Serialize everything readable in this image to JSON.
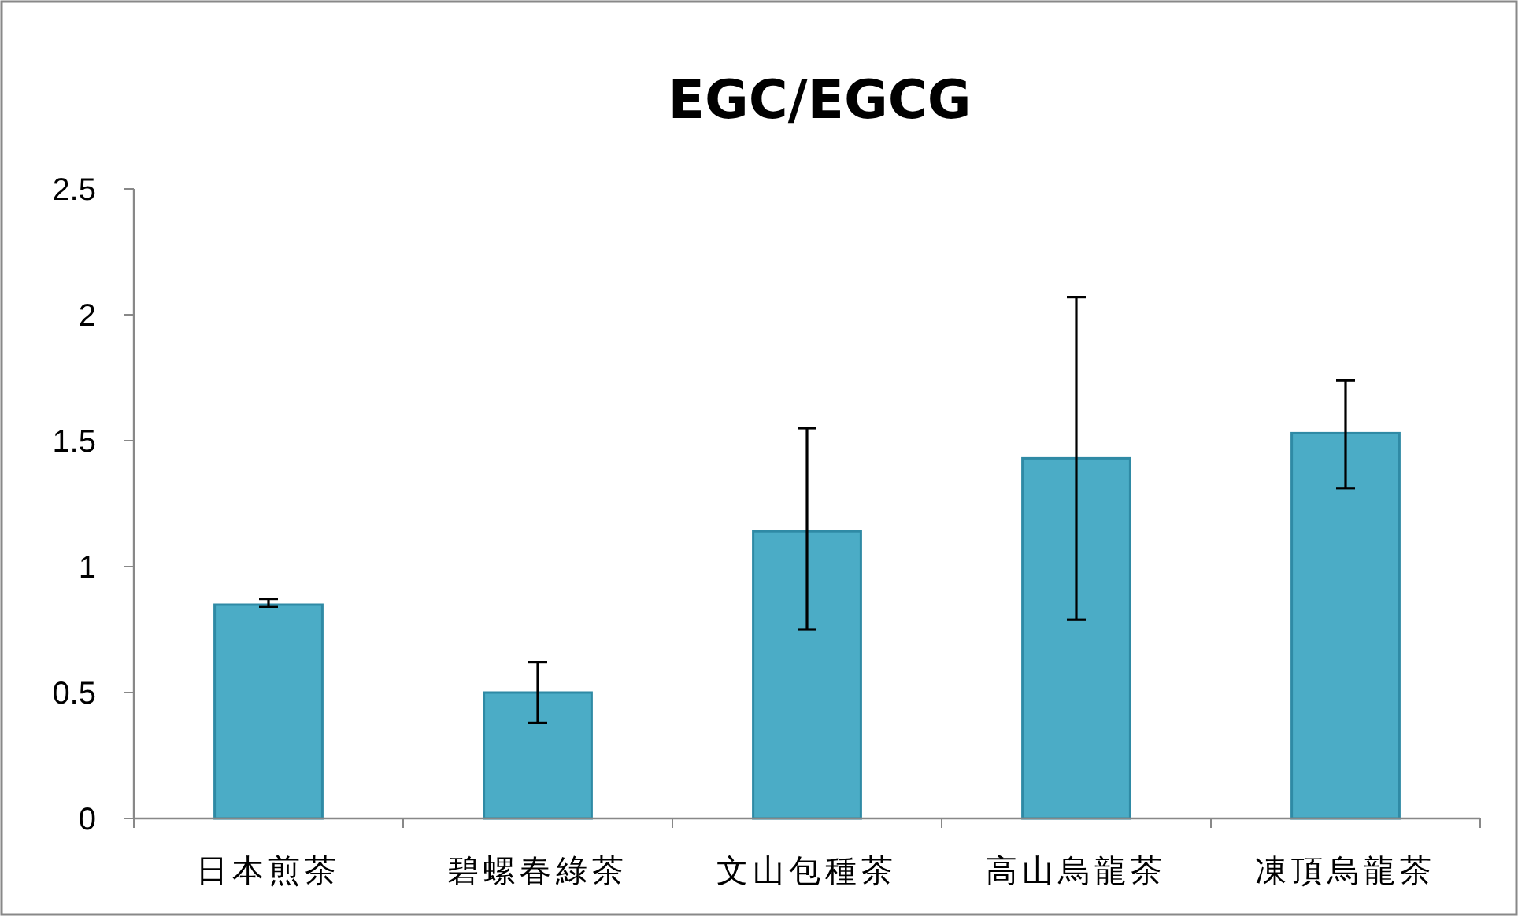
{
  "chart_data": {
    "type": "bar",
    "title": "EGC/EGCG",
    "categories": [
      "日本煎茶",
      "碧螺春綠茶",
      "文山包種茶",
      "高山烏龍茶",
      "凍頂烏龍茶"
    ],
    "values": [
      0.85,
      0.5,
      1.14,
      1.43,
      1.53
    ],
    "errors": [
      [
        0.84,
        0.87
      ],
      [
        0.38,
        0.62
      ],
      [
        0.75,
        1.55
      ],
      [
        0.79,
        2.07
      ],
      [
        1.31,
        1.74
      ]
    ],
    "color": "#4bacc6",
    "ylim": [
      0,
      2.5
    ],
    "yticks": [
      0,
      0.5,
      1,
      1.5,
      2,
      2.5
    ],
    "grid": false
  }
}
